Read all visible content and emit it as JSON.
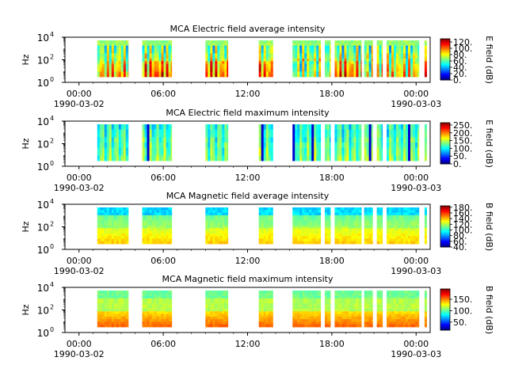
{
  "chart_data": [
    {
      "type": "heatmap",
      "title": "MCA  Electric field average intensity",
      "ylabel": "Hz",
      "colorbar_label": "E field (dB)",
      "colorbar_range": [
        0,
        130
      ],
      "colorbar_ticks": [
        "0.",
        "20.",
        "40.",
        "60.",
        "80.",
        "100.",
        "120."
      ],
      "ylim_exponents": [
        0,
        4
      ],
      "y_ticks": [
        {
          "base": "10",
          "exp": "0"
        },
        {
          "base": "10",
          "exp": "2"
        },
        {
          "base": "10",
          "exp": "4"
        }
      ],
      "x_ticks": [
        "00:00",
        "06:00",
        "12:00",
        "18:00",
        "00:00"
      ],
      "x_dates": [
        "1990-03-02",
        "1990-03-03"
      ],
      "xlim_hours": [
        -1,
        25
      ],
      "style": "e_avg",
      "segments": [
        [
          1.3,
          3.5
        ],
        [
          4.5,
          6.6
        ],
        [
          9.0,
          10.6
        ],
        [
          12.8,
          13.8
        ],
        [
          15.2,
          17.2
        ],
        [
          17.5,
          17.9
        ],
        [
          18.2,
          20.1
        ],
        [
          20.3,
          20.9
        ],
        [
          21.2,
          21.6
        ],
        [
          21.9,
          24.2
        ],
        [
          24.6,
          24.75
        ]
      ]
    },
    {
      "type": "heatmap",
      "title": "MCA  Electric field maximum intensity",
      "ylabel": "Hz",
      "colorbar_label": "E field (dB)",
      "colorbar_range": [
        0,
        265
      ],
      "colorbar_ticks": [
        "0.",
        "50.",
        "100.",
        "150.",
        "200.",
        "250."
      ],
      "ylim_exponents": [
        0,
        4
      ],
      "y_ticks": [
        {
          "base": "10",
          "exp": "0"
        },
        {
          "base": "10",
          "exp": "2"
        },
        {
          "base": "10",
          "exp": "4"
        }
      ],
      "x_ticks": [
        "00:00",
        "06:00",
        "12:00",
        "18:00",
        "00:00"
      ],
      "x_dates": [
        "1990-03-02",
        "1990-03-03"
      ],
      "xlim_hours": [
        -1,
        25
      ],
      "style": "e_max",
      "segments": [
        [
          1.3,
          3.5
        ],
        [
          4.5,
          6.6
        ],
        [
          9.0,
          10.6
        ],
        [
          12.8,
          13.8
        ],
        [
          15.2,
          17.2
        ],
        [
          17.5,
          17.9
        ],
        [
          18.2,
          20.1
        ],
        [
          20.3,
          20.9
        ],
        [
          21.2,
          21.6
        ],
        [
          21.9,
          24.2
        ],
        [
          24.6,
          24.75
        ]
      ]
    },
    {
      "type": "heatmap",
      "title": "MCA  Magnetic field average intensity",
      "ylabel": "Hz",
      "colorbar_label": "B field (dB)",
      "colorbar_range": [
        40,
        185
      ],
      "colorbar_ticks": [
        "40.",
        "60.",
        "80.",
        "100.",
        "120.",
        "140.",
        "160.",
        "180."
      ],
      "ylim_exponents": [
        0,
        4
      ],
      "y_ticks": [
        {
          "base": "10",
          "exp": "0"
        },
        {
          "base": "10",
          "exp": "2"
        },
        {
          "base": "10",
          "exp": "4"
        }
      ],
      "x_ticks": [
        "00:00",
        "06:00",
        "12:00",
        "18:00",
        "00:00"
      ],
      "x_dates": [
        "1990-03-02",
        "1990-03-03"
      ],
      "xlim_hours": [
        -1,
        25
      ],
      "style": "b_avg",
      "segments": [
        [
          1.3,
          3.5
        ],
        [
          4.5,
          6.6
        ],
        [
          9.0,
          10.6
        ],
        [
          12.8,
          13.8
        ],
        [
          15.2,
          17.2
        ],
        [
          17.5,
          17.9
        ],
        [
          18.2,
          20.1
        ],
        [
          20.3,
          20.9
        ],
        [
          21.2,
          21.6
        ],
        [
          21.9,
          24.2
        ],
        [
          24.6,
          24.75
        ]
      ]
    },
    {
      "type": "heatmap",
      "title": "MCA  Magnetic field maximum intensity",
      "ylabel": "Hz",
      "colorbar_label": "B field (dB)",
      "colorbar_range": [
        15,
        195
      ],
      "colorbar_ticks": [
        "50.",
        "100.",
        "150."
      ],
      "ylim_exponents": [
        0,
        4
      ],
      "y_ticks": [
        {
          "base": "10",
          "exp": "0"
        },
        {
          "base": "10",
          "exp": "2"
        },
        {
          "base": "10",
          "exp": "4"
        }
      ],
      "x_ticks": [
        "00:00",
        "06:00",
        "12:00",
        "18:00",
        "00:00"
      ],
      "x_dates": [
        "1990-03-02",
        "1990-03-03"
      ],
      "xlim_hours": [
        -1,
        25
      ],
      "style": "b_max",
      "segments": [
        [
          1.3,
          3.5
        ],
        [
          4.5,
          6.6
        ],
        [
          9.0,
          10.6
        ],
        [
          12.8,
          13.8
        ],
        [
          15.2,
          17.2
        ],
        [
          17.5,
          17.9
        ],
        [
          18.2,
          20.1
        ],
        [
          20.3,
          20.9
        ],
        [
          21.2,
          21.6
        ],
        [
          21.9,
          24.2
        ],
        [
          24.6,
          24.75
        ]
      ]
    }
  ]
}
